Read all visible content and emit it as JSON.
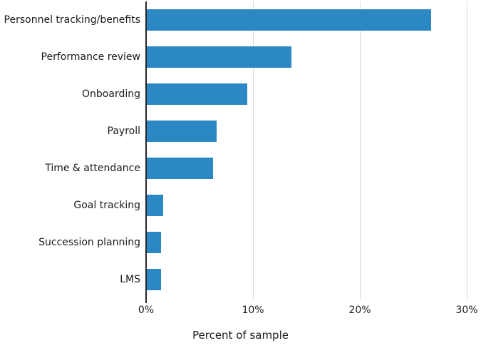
{
  "chart_data": {
    "type": "bar",
    "orientation": "horizontal",
    "title": "",
    "xlabel": "Percent of sample",
    "ylabel": "",
    "categories": [
      "Personnel tracking/benefits",
      "Performance review",
      "Onboarding",
      "Payroll",
      "Time & attendance",
      "Goal tracking",
      "Succession planning",
      "LMS"
    ],
    "values": [
      26.6,
      13.5,
      9.4,
      6.5,
      6.2,
      1.5,
      1.3,
      1.3
    ],
    "xlim": [
      0,
      31.3
    ],
    "xticks": [
      0,
      10,
      20,
      30
    ],
    "xtick_labels": [
      "0%",
      "10%",
      "20%",
      "30%"
    ],
    "grid": "vertical-light",
    "legend": "none"
  },
  "style": {
    "bar_color": "#2c88c5",
    "grid_color": "#d9d9d9",
    "axis_color": "#262626",
    "text_color": "#1a1a1a",
    "background": "#ffffff"
  }
}
